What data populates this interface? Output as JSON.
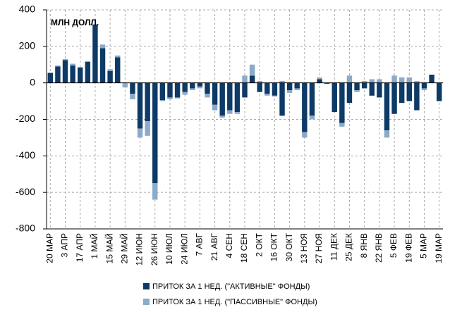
{
  "chart_data": {
    "type": "stacked_bar",
    "annotation": "МЛН ДОЛЛ.",
    "categories": [
      "20 МАР",
      null,
      "3 АПР",
      null,
      "17 АПР",
      null,
      "1 МАЙ",
      null,
      "15 МАЙ",
      null,
      "29 МАЙ",
      null,
      "12 ИЮН",
      null,
      "26 ИЮН",
      null,
      "10 ИЮЛ",
      null,
      "24 ИЮЛ",
      null,
      "7 АВГ",
      null,
      "21 АВГ",
      null,
      "4 СЕН",
      null,
      "18 СЕН",
      null,
      "2 ОКТ",
      null,
      "16 ОКТ",
      null,
      "30 ОКТ",
      null,
      "13 НОЯ",
      null,
      "27 НОЯ",
      null,
      "11 ДЕК",
      null,
      "25 ДЕК",
      null,
      "8 ЯНВ",
      null,
      "22 ЯНВ",
      null,
      "5 ФЕВ",
      null,
      "19 ФЕВ",
      null,
      "5 МАР",
      null,
      "19 МАР"
    ],
    "series": [
      {
        "name": "ПРИТОК ЗА 1 НЕД. (\"АКТИВНЫЕ\" ФОНДЫ)",
        "color": "#0d3a66",
        "values": [
          55,
          90,
          125,
          95,
          85,
          115,
          320,
          190,
          65,
          140,
          0,
          -60,
          -250,
          -210,
          -550,
          -95,
          -80,
          -80,
          -50,
          -30,
          -20,
          -60,
          -120,
          -180,
          -150,
          -160,
          -80,
          40,
          -50,
          -60,
          -70,
          -180,
          -40,
          -30,
          -270,
          -180,
          20,
          -5,
          -160,
          -220,
          -110,
          -40,
          -30,
          -70,
          -80,
          -260,
          -170,
          -110,
          -100,
          -150,
          -30,
          45,
          -100
        ]
      },
      {
        "name": "ПРИТОК ЗА 1 НЕД. (\"ПАССИВНЫЕ\" ФОНДЫ)",
        "color": "#8cabc9",
        "values": [
          0,
          5,
          5,
          10,
          0,
          5,
          0,
          20,
          10,
          10,
          -25,
          -30,
          -50,
          -80,
          -90,
          -5,
          -10,
          -5,
          -15,
          -10,
          -10,
          -20,
          -30,
          -10,
          -20,
          -10,
          40,
          60,
          10,
          -10,
          -5,
          10,
          -15,
          -10,
          -30,
          -20,
          10,
          0,
          0,
          -20,
          40,
          -10,
          10,
          20,
          20,
          -40,
          40,
          30,
          30,
          10,
          -10,
          0,
          0
        ]
      }
    ],
    "ylim": [
      -800,
      400
    ],
    "yticks": [
      -800,
      -600,
      -400,
      -200,
      0,
      200,
      400
    ],
    "grid": true
  }
}
